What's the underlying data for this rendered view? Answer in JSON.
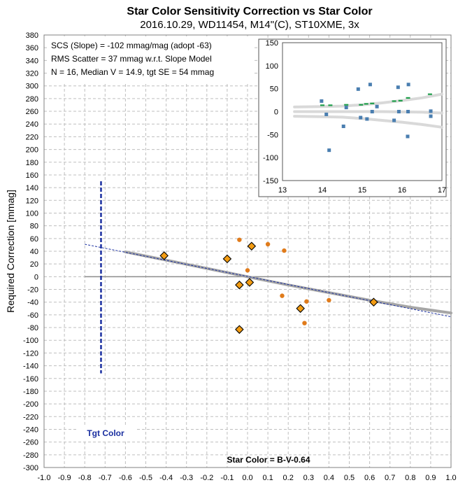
{
  "chart_data": [
    {
      "type": "scatter",
      "title": "Star Color Sensitivity Correction vs Star Color",
      "subtitle": "2016.10.29, WD11454, M14\"(C), ST10XME, 3x",
      "xlabel": "Star Color = B-V-0.64",
      "ylabel": "Required Correction [mmag]",
      "xlim": [
        -1.0,
        1.0
      ],
      "ylim": [
        -300,
        380
      ],
      "x_ticks": [
        -1.0,
        -0.9,
        -0.8,
        -0.7,
        -0.6,
        -0.5,
        -0.4,
        -0.3,
        -0.2,
        -0.1,
        0.0,
        0.1,
        0.2,
        0.3,
        0.4,
        0.5,
        0.6,
        0.7,
        0.8,
        0.9,
        1.0
      ],
      "x_tick_labels": [
        "-1.0",
        "-0.9",
        "-0.8",
        "-0.7",
        "-0.6",
        "-0.5",
        "-0.4",
        "-0.3",
        "-0.2",
        "-0.1",
        "0.0",
        "0.1",
        "0.2",
        "0.3",
        "0.4",
        "0.5",
        "0.6",
        "0.7",
        "0.8",
        "0.9",
        "1.0"
      ],
      "y_ticks": [
        -300,
        -280,
        -260,
        -240,
        -220,
        -200,
        -180,
        -160,
        -140,
        -120,
        -100,
        -80,
        -60,
        -40,
        -20,
        0,
        20,
        40,
        60,
        80,
        100,
        120,
        140,
        160,
        180,
        200,
        220,
        240,
        260,
        280,
        300,
        320,
        340,
        360,
        380
      ],
      "grid": true,
      "colors": {
        "circle": "#e07b1b",
        "diamond": "#f39c12",
        "fit": "#a6a6a6",
        "tgt": "#1a2fa0",
        "zero": "#8c8c8c"
      },
      "series": [
        {
          "marker": "circle",
          "points": [
            [
              -0.04,
              58
            ],
            [
              0.0,
              10
            ],
            [
              0.1,
              51
            ],
            [
              0.18,
              41
            ],
            [
              0.17,
              -30
            ],
            [
              0.29,
              -39
            ],
            [
              0.28,
              -73
            ],
            [
              0.4,
              -37
            ]
          ]
        },
        {
          "marker": "diamond",
          "points": [
            [
              -0.41,
              33
            ],
            [
              -0.1,
              28
            ],
            [
              0.02,
              48
            ],
            [
              -0.04,
              -13
            ],
            [
              0.01,
              -9
            ],
            [
              0.26,
              -50
            ],
            [
              0.62,
              -40
            ],
            [
              -0.04,
              -83
            ]
          ]
        }
      ],
      "fit_curve": [
        [
          -0.6,
          39
        ],
        [
          -0.4,
          26
        ],
        [
          -0.2,
          13
        ],
        [
          0.0,
          0
        ],
        [
          0.2,
          -13
        ],
        [
          0.4,
          -25
        ],
        [
          0.6,
          -37
        ],
        [
          0.8,
          -48
        ],
        [
          1.0,
          -57
        ]
      ],
      "slope_line": [
        [
          -0.8,
          51
        ],
        [
          1.0,
          -63
        ]
      ],
      "zero_line": [
        [
          -0.8,
          0
        ],
        [
          1.0,
          0
        ]
      ],
      "target": {
        "x": -0.72,
        "ymin": -152,
        "ymax": 150,
        "label": "Tgt Color"
      },
      "annotations": [
        "SCS (Slope)  =  -102 mmag/mag (adopt -63)",
        "RMS Scatter = 37 mmag w.r.t. Slope Model",
        "N = 16,  Median V = 14.9, tgt SE = 54 mmag"
      ]
    },
    {
      "type": "scatter",
      "xlim": [
        13,
        17
      ],
      "ylim": [
        -150,
        150
      ],
      "x_ticks": [
        13,
        14,
        15,
        16,
        17
      ],
      "y_ticks": [
        -150,
        -100,
        -50,
        0,
        50,
        100,
        150
      ],
      "grid": false,
      "colors": {
        "points": "#4a7eb0",
        "dash": "#1e9e4a",
        "band": "#d9d9d9"
      },
      "series": [
        {
          "marker": "square",
          "points": [
            [
              13.98,
              23
            ],
            [
              14.1,
              -6
            ],
            [
              14.17,
              -84
            ],
            [
              14.53,
              -32
            ],
            [
              14.6,
              9
            ],
            [
              14.9,
              49
            ],
            [
              14.96,
              -13
            ],
            [
              15.12,
              -16
            ],
            [
              15.2,
              59
            ],
            [
              15.25,
              0
            ],
            [
              15.37,
              11
            ],
            [
              15.8,
              -19
            ],
            [
              15.9,
              53
            ],
            [
              15.92,
              0
            ],
            [
              16.14,
              -54
            ],
            [
              16.15,
              0
            ],
            [
              16.16,
              59
            ],
            [
              16.72,
              -10
            ],
            [
              16.72,
              1
            ]
          ]
        },
        {
          "marker": "dash",
          "points": [
            [
              14.0,
              14
            ],
            [
              14.2,
              14
            ],
            [
              14.6,
              15
            ],
            [
              14.97,
              15
            ],
            [
              15.1,
              17
            ],
            [
              15.25,
              18
            ],
            [
              15.8,
              23
            ],
            [
              15.96,
              24
            ],
            [
              16.15,
              30
            ],
            [
              16.7,
              38
            ]
          ]
        }
      ],
      "bands": [
        [
          [
            13.3,
            10
          ],
          [
            14.0,
            11
          ],
          [
            14.5,
            12
          ],
          [
            15.0,
            15
          ],
          [
            15.5,
            19
          ],
          [
            16.0,
            24
          ],
          [
            16.5,
            30
          ],
          [
            17.0,
            38
          ]
        ],
        [
          [
            13.3,
            0
          ],
          [
            14.5,
            0
          ],
          [
            15.5,
            0
          ],
          [
            16.5,
            -1
          ],
          [
            17.0,
            -3
          ]
        ],
        [
          [
            13.3,
            -10
          ],
          [
            14.0,
            -11
          ],
          [
            14.5,
            -12
          ],
          [
            15.0,
            -15
          ],
          [
            15.5,
            -19
          ],
          [
            16.0,
            -23
          ],
          [
            16.5,
            -28
          ],
          [
            17.0,
            -34
          ]
        ]
      ]
    }
  ]
}
